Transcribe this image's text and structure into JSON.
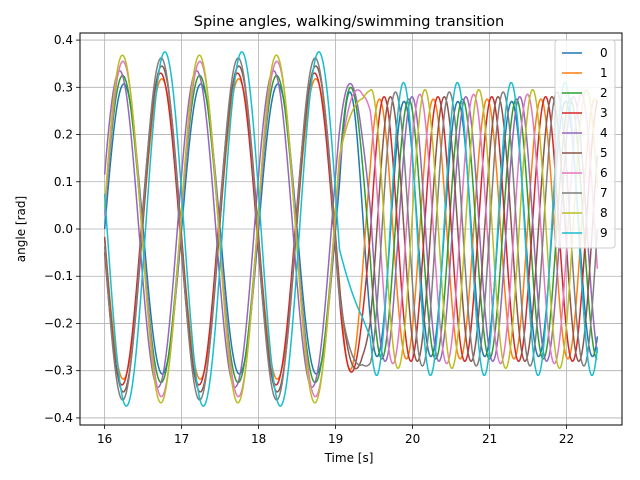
{
  "chart_data": {
    "type": "line",
    "title": "Spine angles, walking/swimming transition",
    "xlabel": "Time [s]",
    "ylabel": "angle [rad]",
    "xlim": [
      15.68,
      22.72
    ],
    "ylim": [
      -0.415,
      0.415
    ],
    "xticks": [
      16,
      17,
      18,
      19,
      20,
      21,
      22
    ],
    "yticks": [
      -0.4,
      -0.3,
      -0.2,
      -0.1,
      0.0,
      0.1,
      0.2,
      0.3,
      0.4
    ],
    "ytick_labels": [
      "−0.4",
      "−0.3",
      "−0.2",
      "−0.1",
      "0.0",
      "0.1",
      "0.2",
      "0.3",
      "0.4"
    ],
    "grid": true,
    "legend_position": "top-right",
    "colors": [
      "#1f77b4",
      "#ff7f0e",
      "#2ca02c",
      "#d62728",
      "#9467bd",
      "#8c564b",
      "#e377c2",
      "#7f7f7f",
      "#bcbd22",
      "#17becf"
    ],
    "x_start": 16.0,
    "x_end": 22.4,
    "walk_end": 19.05,
    "walk_frequency_hz": 1.0,
    "swim_frequency_hz": 1.43,
    "series": [
      {
        "name": "0",
        "walk_amplitude": 0.307,
        "walk_phase": 0.0,
        "swim_amplitude": 0.27,
        "swim_phase_lag": 0.0
      },
      {
        "name": "1",
        "walk_amplitude": 0.318,
        "walk_phase": 0.05,
        "swim_amplitude": 0.275,
        "swim_phase_lag": 0.32
      },
      {
        "name": "2",
        "walk_amplitude": 0.325,
        "walk_phase": 0.1,
        "swim_amplitude": 0.275,
        "swim_phase_lag": 0.64
      },
      {
        "name": "3",
        "walk_amplitude": 0.33,
        "walk_phase": 0.15,
        "swim_amplitude": 0.28,
        "swim_phase_lag": 0.96
      },
      {
        "name": "4",
        "walk_amplitude": 0.335,
        "walk_phase": 0.35,
        "swim_amplitude": 0.28,
        "swim_phase_lag": 1.28
      },
      {
        "name": "5",
        "walk_amplitude": 0.345,
        "walk_phase": 0.05,
        "swim_amplitude": 0.28,
        "swim_phase_lag": 1.6
      },
      {
        "name": "6",
        "walk_amplitude": 0.355,
        "walk_phase": 0.08,
        "swim_amplitude": 0.285,
        "swim_phase_lag": 1.92
      },
      {
        "name": "7",
        "walk_amplitude": 0.362,
        "walk_phase": 0.1,
        "swim_amplitude": 0.29,
        "swim_phase_lag": 2.24
      },
      {
        "name": "8",
        "walk_amplitude": 0.368,
        "walk_phase": 0.12,
        "swim_amplitude": 0.295,
        "swim_phase_lag": 2.56
      },
      {
        "name": "9",
        "walk_amplitude": 0.375,
        "walk_phase": -0.2,
        "swim_amplitude": 0.31,
        "swim_phase_lag": 2.88
      }
    ]
  }
}
